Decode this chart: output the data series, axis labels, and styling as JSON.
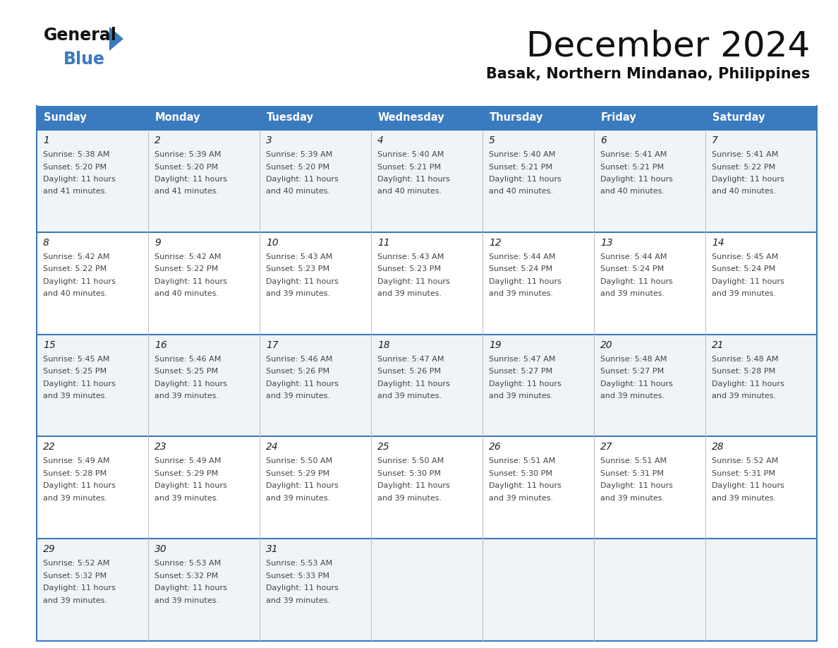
{
  "title": "December 2024",
  "subtitle": "Basak, Northern Mindanao, Philippines",
  "header_color": "#3a7abf",
  "header_text_color": "#ffffff",
  "cell_bg_color_odd": "#f0f4f8",
  "cell_bg_color_even": "#ffffff",
  "border_color": "#3a7abf",
  "day_number_color": "#222222",
  "cell_text_color": "#444444",
  "days_of_week": [
    "Sunday",
    "Monday",
    "Tuesday",
    "Wednesday",
    "Thursday",
    "Friday",
    "Saturday"
  ],
  "weeks": [
    [
      {
        "day": 1,
        "sunrise": "5:38 AM",
        "sunset": "5:20 PM",
        "daylight_hours": 11,
        "daylight_mins": 41
      },
      {
        "day": 2,
        "sunrise": "5:39 AM",
        "sunset": "5:20 PM",
        "daylight_hours": 11,
        "daylight_mins": 41
      },
      {
        "day": 3,
        "sunrise": "5:39 AM",
        "sunset": "5:20 PM",
        "daylight_hours": 11,
        "daylight_mins": 40
      },
      {
        "day": 4,
        "sunrise": "5:40 AM",
        "sunset": "5:21 PM",
        "daylight_hours": 11,
        "daylight_mins": 40
      },
      {
        "day": 5,
        "sunrise": "5:40 AM",
        "sunset": "5:21 PM",
        "daylight_hours": 11,
        "daylight_mins": 40
      },
      {
        "day": 6,
        "sunrise": "5:41 AM",
        "sunset": "5:21 PM",
        "daylight_hours": 11,
        "daylight_mins": 40
      },
      {
        "day": 7,
        "sunrise": "5:41 AM",
        "sunset": "5:22 PM",
        "daylight_hours": 11,
        "daylight_mins": 40
      }
    ],
    [
      {
        "day": 8,
        "sunrise": "5:42 AM",
        "sunset": "5:22 PM",
        "daylight_hours": 11,
        "daylight_mins": 40
      },
      {
        "day": 9,
        "sunrise": "5:42 AM",
        "sunset": "5:22 PM",
        "daylight_hours": 11,
        "daylight_mins": 40
      },
      {
        "day": 10,
        "sunrise": "5:43 AM",
        "sunset": "5:23 PM",
        "daylight_hours": 11,
        "daylight_mins": 39
      },
      {
        "day": 11,
        "sunrise": "5:43 AM",
        "sunset": "5:23 PM",
        "daylight_hours": 11,
        "daylight_mins": 39
      },
      {
        "day": 12,
        "sunrise": "5:44 AM",
        "sunset": "5:24 PM",
        "daylight_hours": 11,
        "daylight_mins": 39
      },
      {
        "day": 13,
        "sunrise": "5:44 AM",
        "sunset": "5:24 PM",
        "daylight_hours": 11,
        "daylight_mins": 39
      },
      {
        "day": 14,
        "sunrise": "5:45 AM",
        "sunset": "5:24 PM",
        "daylight_hours": 11,
        "daylight_mins": 39
      }
    ],
    [
      {
        "day": 15,
        "sunrise": "5:45 AM",
        "sunset": "5:25 PM",
        "daylight_hours": 11,
        "daylight_mins": 39
      },
      {
        "day": 16,
        "sunrise": "5:46 AM",
        "sunset": "5:25 PM",
        "daylight_hours": 11,
        "daylight_mins": 39
      },
      {
        "day": 17,
        "sunrise": "5:46 AM",
        "sunset": "5:26 PM",
        "daylight_hours": 11,
        "daylight_mins": 39
      },
      {
        "day": 18,
        "sunrise": "5:47 AM",
        "sunset": "5:26 PM",
        "daylight_hours": 11,
        "daylight_mins": 39
      },
      {
        "day": 19,
        "sunrise": "5:47 AM",
        "sunset": "5:27 PM",
        "daylight_hours": 11,
        "daylight_mins": 39
      },
      {
        "day": 20,
        "sunrise": "5:48 AM",
        "sunset": "5:27 PM",
        "daylight_hours": 11,
        "daylight_mins": 39
      },
      {
        "day": 21,
        "sunrise": "5:48 AM",
        "sunset": "5:28 PM",
        "daylight_hours": 11,
        "daylight_mins": 39
      }
    ],
    [
      {
        "day": 22,
        "sunrise": "5:49 AM",
        "sunset": "5:28 PM",
        "daylight_hours": 11,
        "daylight_mins": 39
      },
      {
        "day": 23,
        "sunrise": "5:49 AM",
        "sunset": "5:29 PM",
        "daylight_hours": 11,
        "daylight_mins": 39
      },
      {
        "day": 24,
        "sunrise": "5:50 AM",
        "sunset": "5:29 PM",
        "daylight_hours": 11,
        "daylight_mins": 39
      },
      {
        "day": 25,
        "sunrise": "5:50 AM",
        "sunset": "5:30 PM",
        "daylight_hours": 11,
        "daylight_mins": 39
      },
      {
        "day": 26,
        "sunrise": "5:51 AM",
        "sunset": "5:30 PM",
        "daylight_hours": 11,
        "daylight_mins": 39
      },
      {
        "day": 27,
        "sunrise": "5:51 AM",
        "sunset": "5:31 PM",
        "daylight_hours": 11,
        "daylight_mins": 39
      },
      {
        "day": 28,
        "sunrise": "5:52 AM",
        "sunset": "5:31 PM",
        "daylight_hours": 11,
        "daylight_mins": 39
      }
    ],
    [
      {
        "day": 29,
        "sunrise": "5:52 AM",
        "sunset": "5:32 PM",
        "daylight_hours": 11,
        "daylight_mins": 39
      },
      {
        "day": 30,
        "sunrise": "5:53 AM",
        "sunset": "5:32 PM",
        "daylight_hours": 11,
        "daylight_mins": 39
      },
      {
        "day": 31,
        "sunrise": "5:53 AM",
        "sunset": "5:33 PM",
        "daylight_hours": 11,
        "daylight_mins": 39
      },
      null,
      null,
      null,
      null
    ]
  ],
  "logo_general_color": "#111111",
  "logo_blue_color": "#3a7abf",
  "logo_triangle_color": "#3a7abf"
}
